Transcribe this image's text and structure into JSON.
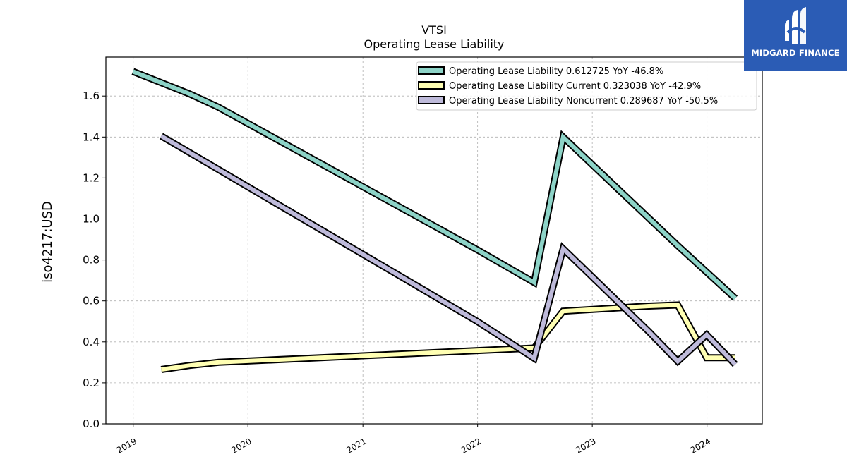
{
  "brand": {
    "name": "MIDGARD FINANCE",
    "background": "#2b5cb5"
  },
  "chart_data": {
    "type": "line",
    "title": "VTSI",
    "subtitle": "Operating Lease Liability",
    "xlabel": "",
    "ylabel": "iso4217:USD",
    "x_ticks": [
      "2019",
      "2020",
      "2021",
      "2022",
      "2023",
      "2024"
    ],
    "y_ticks": [
      "0.0",
      "0.2",
      "0.4",
      "0.6",
      "0.8",
      "1.0",
      "1.2",
      "1.4",
      "1.6"
    ],
    "xlim": [
      "2018-10-06",
      "2024-06-25"
    ],
    "ylim": [
      0,
      1.79
    ],
    "grid": true,
    "legend_position": "top-right",
    "series": [
      {
        "name": "Operating Lease Liability",
        "legend_label": "Operating Lease Liability  0.612725 YoY -46.8%",
        "color": "#8dd3c7",
        "points": [
          [
            "2018-12-31",
            1.72
          ],
          [
            "2019-06-30",
            1.61
          ],
          [
            "2019-09-30",
            1.545
          ],
          [
            "2021-12-31",
            0.85
          ],
          [
            "2022-06-30",
            0.69
          ],
          [
            "2022-09-30",
            1.4
          ],
          [
            "2023-09-30",
            0.87
          ],
          [
            "2024-03-31",
            0.612725
          ]
        ]
      },
      {
        "name": "Operating Lease Liability Current",
        "legend_label": "Operating Lease Liability Current  0.323038 YoY -42.9%",
        "color": "#ffffb3",
        "points": [
          [
            "2019-03-31",
            0.265
          ],
          [
            "2019-06-30",
            0.285
          ],
          [
            "2019-09-30",
            0.3
          ],
          [
            "2022-06-30",
            0.37
          ],
          [
            "2022-09-30",
            0.55
          ],
          [
            "2023-06-30",
            0.575
          ],
          [
            "2023-09-30",
            0.58
          ],
          [
            "2023-12-31",
            0.323
          ],
          [
            "2024-03-31",
            0.323038
          ]
        ]
      },
      {
        "name": "Operating Lease Liability Noncurrent",
        "legend_label": "Operating Lease Liability Noncurrent  0.289687 YoY -50.5%",
        "color": "#bebada",
        "points": [
          [
            "2019-03-31",
            1.405
          ],
          [
            "2021-12-31",
            0.5
          ],
          [
            "2022-06-30",
            0.32
          ],
          [
            "2022-09-30",
            0.855
          ],
          [
            "2023-06-30",
            0.45
          ],
          [
            "2023-09-30",
            0.305
          ],
          [
            "2023-12-31",
            0.435
          ],
          [
            "2024-03-31",
            0.289687
          ]
        ]
      }
    ]
  }
}
